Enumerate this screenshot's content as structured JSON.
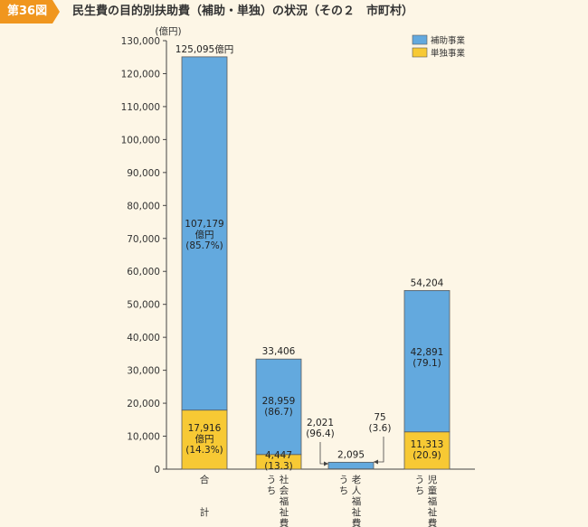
{
  "header": {
    "badge": "第36図",
    "title": "民生費の目的別扶助費（補助・単独）の状況（その２　市町村）"
  },
  "chart_data": {
    "type": "bar",
    "stacked": true,
    "unit_label": "(億円)",
    "ylim": [
      0,
      130000
    ],
    "yticks": [
      0,
      10000,
      20000,
      30000,
      40000,
      50000,
      60000,
      70000,
      80000,
      90000,
      100000,
      110000,
      120000,
      130000
    ],
    "ytick_labels": [
      "0",
      "10,000",
      "20,000",
      "30,000",
      "40,000",
      "50,000",
      "60,000",
      "70,000",
      "80,000",
      "90,000",
      "100,000",
      "110,000",
      "120,000",
      "130,000"
    ],
    "categories": [
      {
        "prefix": "",
        "chars": [
          "合",
          "計"
        ]
      },
      {
        "prefix": "うち",
        "chars": [
          "社",
          "会",
          "福",
          "祉",
          "費"
        ]
      },
      {
        "prefix": "うち",
        "chars": [
          "老",
          "人",
          "福",
          "祉",
          "費"
        ]
      },
      {
        "prefix": "うち",
        "chars": [
          "児",
          "童",
          "福",
          "祉",
          "費"
        ]
      }
    ],
    "series": [
      {
        "name": "単独事業",
        "color": "#f7c934",
        "values": [
          17916,
          4447,
          75,
          11313
        ]
      },
      {
        "name": "補助事業",
        "color": "#63a9de",
        "values": [
          107179,
          28959,
          2021,
          42891
        ]
      }
    ],
    "totals": [
      125095,
      33406,
      2095,
      54204
    ],
    "total_labels": [
      "125,095億円",
      "33,406",
      "2,095",
      "54,204"
    ],
    "labels": {
      "bar0_hojo": [
        "107,179",
        "億円",
        "(85.7%)"
      ],
      "bar0_tandoku": [
        "17,916",
        "億円",
        "(14.3%)"
      ],
      "bar1_hojo": [
        "28,959",
        "(86.7)"
      ],
      "bar1_tandoku": [
        "4,447",
        "(13.3)"
      ],
      "bar2_hojo": [
        "2,021",
        "(96.4)"
      ],
      "bar2_tandoku": [
        "75",
        "(3.6)"
      ],
      "bar3_hojo": [
        "42,891",
        "(79.1)"
      ],
      "bar3_tandoku": [
        "11,313",
        "(20.9)"
      ]
    },
    "legend": [
      {
        "name": "補助事業",
        "color": "#63a9de"
      },
      {
        "name": "単独事業",
        "color": "#f7c934"
      }
    ],
    "legend_position": "top-right",
    "grid": false
  }
}
